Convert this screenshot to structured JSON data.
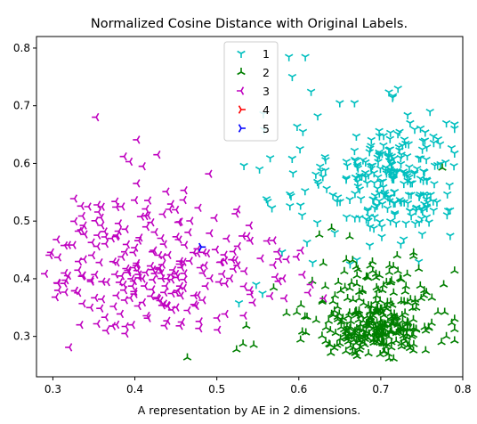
{
  "chart_data": {
    "type": "scatter",
    "title": "Normalized Cosine Distance with Original Labels.",
    "xlabel": "A representation by AE in 2 dimensions.",
    "ylabel": "",
    "xlim": [
      0.28,
      0.8
    ],
    "ylim": [
      0.23,
      0.82
    ],
    "xticks": [
      "0.3",
      "0.4",
      "0.5",
      "0.6",
      "0.7",
      "0.8"
    ],
    "yticks": [
      "0.3",
      "0.4",
      "0.5",
      "0.6",
      "0.7",
      "0.8"
    ],
    "grid": false,
    "legend_position": "top-center",
    "series": [
      {
        "name": "1",
        "color": "#00bfbf",
        "marker": "tri_down",
        "clusters": [
          {
            "cx": 0.715,
            "cy": 0.575,
            "sx": 0.038,
            "sy": 0.055,
            "n": 240
          },
          {
            "cx": 0.6,
            "cy": 0.58,
            "sx": 0.03,
            "sy": 0.09,
            "n": 22
          }
        ],
        "points": [
          [
            0.588,
            0.785
          ],
          [
            0.608,
            0.785
          ],
          [
            0.533,
            0.596
          ],
          [
            0.552,
            0.59
          ],
          [
            0.562,
            0.534
          ],
          [
            0.548,
            0.39
          ],
          [
            0.527,
            0.358
          ],
          [
            0.61,
            0.463
          ],
          [
            0.598,
            0.664
          ],
          [
            0.605,
            0.655
          ],
          [
            0.721,
            0.73
          ],
          [
            0.76,
            0.69
          ],
          [
            0.78,
            0.67
          ],
          [
            0.65,
            0.705
          ],
          [
            0.668,
            0.705
          ],
          [
            0.604,
            0.51
          ],
          [
            0.617,
            0.428
          ]
        ]
      },
      {
        "name": "2",
        "color": "#007f00",
        "marker": "tri_up",
        "clusters": [
          {
            "cx": 0.695,
            "cy": 0.315,
            "sx": 0.036,
            "sy": 0.025,
            "n": 260
          },
          {
            "cx": 0.7,
            "cy": 0.385,
            "sx": 0.045,
            "sy": 0.028,
            "n": 70
          }
        ],
        "points": [
          [
            0.464,
            0.263
          ],
          [
            0.524,
            0.277
          ],
          [
            0.532,
            0.287
          ],
          [
            0.545,
            0.285
          ],
          [
            0.536,
            0.318
          ],
          [
            0.775,
            0.592
          ],
          [
            0.662,
            0.473
          ],
          [
            0.64,
            0.488
          ],
          [
            0.625,
            0.476
          ],
          [
            0.72,
            0.44
          ],
          [
            0.74,
            0.445
          ],
          [
            0.778,
            0.342
          ],
          [
            0.79,
            0.33
          ],
          [
            0.78,
            0.3
          ],
          [
            0.585,
            0.34
          ]
        ]
      },
      {
        "name": "3",
        "color": "#bf00bf",
        "marker": "tri_left",
        "clusters": [
          {
            "cx": 0.41,
            "cy": 0.43,
            "sx": 0.058,
            "sy": 0.06,
            "n": 215
          },
          {
            "cx": 0.53,
            "cy": 0.43,
            "sx": 0.03,
            "sy": 0.035,
            "n": 30
          }
        ],
        "points": [
          [
            0.353,
            0.68
          ],
          [
            0.403,
            0.641
          ],
          [
            0.41,
            0.595
          ],
          [
            0.387,
            0.612
          ],
          [
            0.394,
            0.603
          ],
          [
            0.428,
            0.615
          ],
          [
            0.315,
            0.41
          ],
          [
            0.306,
            0.393
          ],
          [
            0.307,
            0.38
          ],
          [
            0.572,
            0.403
          ],
          [
            0.583,
            0.366
          ],
          [
            0.615,
            0.39
          ],
          [
            0.612,
            0.376
          ],
          [
            0.631,
            0.366
          ],
          [
            0.603,
            0.449
          ],
          [
            0.598,
            0.438
          ],
          [
            0.605,
            0.407
          ],
          [
            0.465,
            0.345
          ],
          [
            0.475,
            0.353
          ],
          [
            0.44,
            0.327
          ],
          [
            0.446,
            0.346
          ],
          [
            0.383,
            0.339
          ],
          [
            0.397,
            0.32
          ],
          [
            0.389,
            0.305
          ],
          [
            0.477,
            0.452
          ]
        ]
      },
      {
        "name": "4",
        "color": "#ff0000",
        "marker": "tri_right",
        "points": []
      },
      {
        "name": "5",
        "color": "#0000ff",
        "marker": "tri_right",
        "points": [
          [
            0.481,
            0.455
          ]
        ]
      }
    ]
  }
}
